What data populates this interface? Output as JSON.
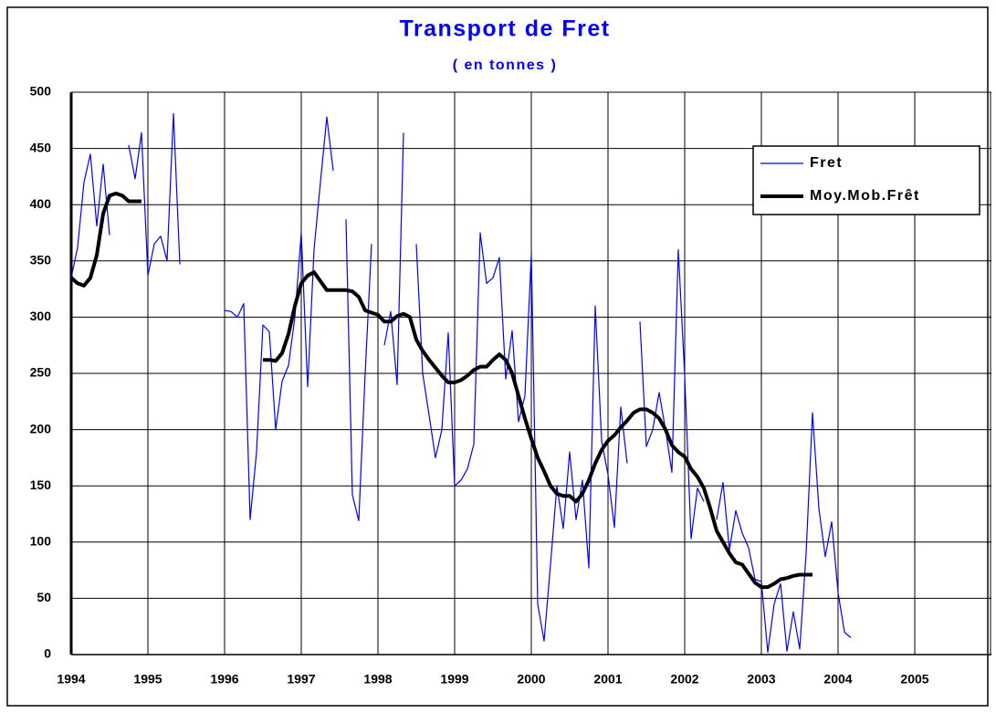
{
  "chart_data": {
    "type": "line",
    "title": "Transport de Fret",
    "subtitle": "( en tonnes )",
    "x": [
      1994,
      1994.083,
      1994.167,
      1994.25,
      1994.333,
      1994.417,
      1994.5,
      1994.583,
      1994.667,
      1994.75,
      1994.833,
      1994.917,
      1995,
      1995.083,
      1995.167,
      1995.25,
      1995.333,
      1995.417,
      1995.5,
      1995.583,
      1995.667,
      1995.75,
      1995.833,
      1995.917,
      1996,
      1996.083,
      1996.167,
      1996.25,
      1996.333,
      1996.417,
      1996.5,
      1996.583,
      1996.667,
      1996.75,
      1996.833,
      1996.917,
      1997,
      1997.083,
      1997.167,
      1997.25,
      1997.333,
      1997.417,
      1997.5,
      1997.583,
      1997.667,
      1997.75,
      1997.833,
      1997.917,
      1998,
      1998.083,
      1998.167,
      1998.25,
      1998.333,
      1998.417,
      1998.5,
      1998.583,
      1998.667,
      1998.75,
      1998.833,
      1998.917,
      1999,
      1999.083,
      1999.167,
      1999.25,
      1999.333,
      1999.417,
      1999.5,
      1999.583,
      1999.667,
      1999.75,
      1999.833,
      1999.917,
      2000,
      2000.083,
      2000.167,
      2000.25,
      2000.333,
      2000.417,
      2000.5,
      2000.583,
      2000.667,
      2000.75,
      2000.833,
      2000.917,
      2001,
      2001.083,
      2001.167,
      2001.25,
      2001.333,
      2001.417,
      2001.5,
      2001.583,
      2001.667,
      2001.75,
      2001.833,
      2001.917,
      2002,
      2002.083,
      2002.167,
      2002.25,
      2002.333,
      2002.417,
      2002.5,
      2002.583,
      2002.667,
      2002.75,
      2002.833,
      2002.917,
      2003,
      2003.083,
      2003.167,
      2003.25,
      2003.333,
      2003.417,
      2003.5,
      2003.583,
      2003.667,
      2003.75,
      2003.833,
      2003.917,
      2004,
      2004.083,
      2004.167
    ],
    "series": [
      {
        "name": "Fret",
        "color": "#0000ff",
        "width": 1.2,
        "values": [
          335,
          362,
          420,
          445,
          381,
          436,
          373,
          null,
          null,
          453,
          423,
          464,
          337,
          365,
          372,
          350,
          481,
          347,
          null,
          null,
          null,
          null,
          null,
          null,
          306,
          305,
          300,
          312,
          120,
          180,
          293,
          287,
          200,
          243,
          257,
          300,
          375,
          238,
          360,
          420,
          478,
          430,
          null,
          387,
          142,
          119,
          250,
          365,
          null,
          275,
          305,
          240,
          464,
          null,
          365,
          250,
          213,
          175,
          200,
          286,
          150,
          155,
          165,
          187,
          375,
          330,
          335,
          353,
          245,
          288,
          207,
          230,
          356,
          45,
          12,
          80,
          150,
          112,
          180,
          120,
          155,
          77,
          310,
          190,
          160,
          113,
          220,
          170,
          null,
          296,
          185,
          200,
          233,
          200,
          162,
          360,
          248,
          103,
          148,
          136,
          null,
          120,
          153,
          93,
          128,
          108,
          95,
          67,
          65,
          2,
          45,
          63,
          3,
          38,
          5,
          90,
          215,
          130,
          87,
          118,
          55,
          20,
          15
        ]
      },
      {
        "name": "Moy.Mob.Frêt",
        "color": "#000000",
        "width": 4,
        "values": [
          335,
          330,
          328,
          335,
          355,
          392,
          408,
          410,
          408,
          403,
          403,
          403,
          null,
          null,
          null,
          null,
          null,
          null,
          null,
          null,
          null,
          null,
          null,
          null,
          null,
          null,
          null,
          null,
          null,
          null,
          262,
          262,
          261,
          268,
          285,
          310,
          330,
          337,
          340,
          332,
          324,
          324,
          324,
          324,
          323,
          318,
          306,
          304,
          302,
          296,
          296,
          301,
          303,
          300,
          280,
          270,
          262,
          255,
          248,
          242,
          242,
          244,
          248,
          253,
          256,
          256,
          262,
          267,
          262,
          250,
          230,
          210,
          192,
          175,
          163,
          150,
          143,
          141,
          141,
          136,
          143,
          155,
          170,
          182,
          190,
          195,
          202,
          208,
          215,
          218,
          218,
          215,
          210,
          200,
          186,
          180,
          176,
          165,
          158,
          148,
          130,
          110,
          100,
          90,
          82,
          80,
          72,
          64,
          60,
          60,
          63,
          67,
          68,
          70,
          71,
          71,
          71,
          null,
          null,
          null,
          null,
          null,
          null
        ]
      }
    ],
    "xlim": [
      1994,
      2006
    ],
    "xticks": [
      1994,
      1995,
      1996,
      1997,
      1998,
      1999,
      2000,
      2001,
      2002,
      2003,
      2004,
      2005
    ],
    "ylim": [
      0,
      500
    ],
    "yticks": [
      0,
      50,
      100,
      150,
      200,
      250,
      300,
      350,
      400,
      450,
      500
    ],
    "grid": true,
    "legend": "upper right"
  }
}
